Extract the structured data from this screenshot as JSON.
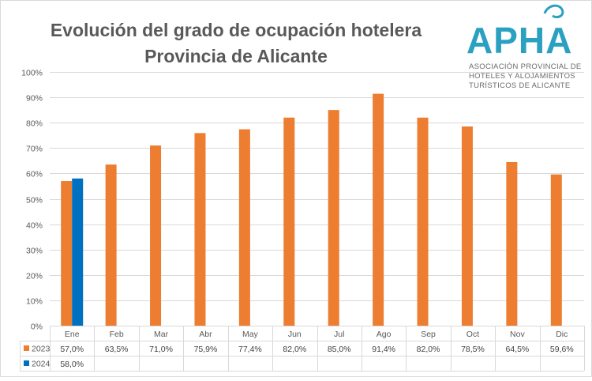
{
  "chart_data": {
    "type": "bar",
    "title": [
      "Evolución del grado de ocupación hotelera",
      "Provincia de Alicante"
    ],
    "categories": [
      "Ene",
      "Feb",
      "Mar",
      "Abr",
      "May",
      "Jun",
      "Jul",
      "Ago",
      "Sep",
      "Oct",
      "Nov",
      "Dic"
    ],
    "series": [
      {
        "name": "2023",
        "color": "#ed7d31",
        "values": [
          57.0,
          63.5,
          71.0,
          75.9,
          77.4,
          82.0,
          85.0,
          91.4,
          82.0,
          78.5,
          64.5,
          59.6
        ],
        "labels": [
          "57,0%",
          "63,5%",
          "71,0%",
          "75,9%",
          "77,4%",
          "82,0%",
          "85,0%",
          "91,4%",
          "82,0%",
          "78,5%",
          "64,5%",
          "59,6%"
        ]
      },
      {
        "name": "2024",
        "color": "#0070c0",
        "values": [
          58.0,
          null,
          null,
          null,
          null,
          null,
          null,
          null,
          null,
          null,
          null,
          null
        ],
        "labels": [
          "58,0%",
          "",
          "",
          "",
          "",
          "",
          "",
          "",
          "",
          "",
          "",
          ""
        ]
      }
    ],
    "ylim": [
      0,
      100
    ],
    "yticks": [
      0,
      10,
      20,
      30,
      40,
      50,
      60,
      70,
      80,
      90,
      100
    ],
    "ytick_labels": [
      "0%",
      "10%",
      "20%",
      "30%",
      "40%",
      "50%",
      "60%",
      "70%",
      "80%",
      "90%",
      "100%"
    ],
    "grid": true,
    "legend": "data-table-bottom"
  },
  "logo": {
    "name": "APHA",
    "subtitle": [
      "ASOCIACIÓN PROVINCIAL DE",
      "HOTELES Y ALOJAMIENTOS",
      "TURÍSTICOS DE ALICANTE"
    ],
    "color": "#2aa1c0"
  }
}
